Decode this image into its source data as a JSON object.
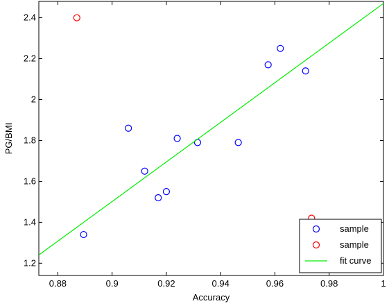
{
  "chart_data": {
    "type": "scatter",
    "xlabel": "Accuracy",
    "ylabel": "PG/BMI",
    "xlim": [
      0.873,
      1.0
    ],
    "ylim": [
      1.14,
      2.48
    ],
    "grid": false,
    "legend_placement": "bottom-right",
    "x_ticks": [
      0.88,
      0.9,
      0.92,
      0.94,
      0.96,
      0.98,
      1
    ],
    "x_tick_labels": [
      "0.88",
      "0.9",
      "0.92",
      "0.94",
      "0.96",
      "0.98",
      "1"
    ],
    "y_ticks": [
      1.2,
      1.4,
      1.6,
      1.8,
      2.0,
      2.2,
      2.4
    ],
    "y_tick_labels": [
      "1.2",
      "1.4",
      "1.6",
      "1.8",
      "2",
      "2.2",
      "2.4"
    ],
    "series": [
      {
        "name": "sample",
        "color": "#0000ff",
        "marker": "circle",
        "points": [
          {
            "x": 0.8895,
            "y": 1.34
          },
          {
            "x": 0.906,
            "y": 1.86
          },
          {
            "x": 0.912,
            "y": 1.65
          },
          {
            "x": 0.917,
            "y": 1.52
          },
          {
            "x": 0.92,
            "y": 1.55
          },
          {
            "x": 0.924,
            "y": 1.81
          },
          {
            "x": 0.9315,
            "y": 1.79
          },
          {
            "x": 0.9465,
            "y": 1.79
          },
          {
            "x": 0.9575,
            "y": 2.17
          },
          {
            "x": 0.962,
            "y": 2.25
          },
          {
            "x": 0.9713,
            "y": 2.14
          }
        ]
      },
      {
        "name": "sample",
        "color": "#ff0000",
        "marker": "circle",
        "points": [
          {
            "x": 0.887,
            "y": 2.4
          },
          {
            "x": 0.9735,
            "y": 1.42
          }
        ]
      },
      {
        "name": "fit curve",
        "color": "#00ee00",
        "marker": "line",
        "points": [
          {
            "x": 0.873,
            "y": 1.24
          },
          {
            "x": 1.0,
            "y": 2.47
          }
        ]
      }
    ]
  }
}
